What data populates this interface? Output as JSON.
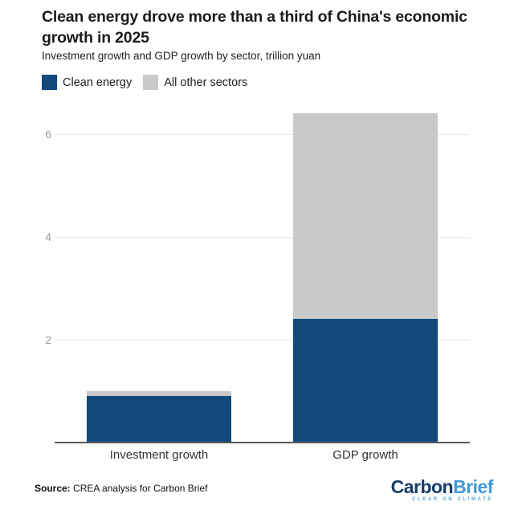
{
  "header": {
    "title_line1": "Clean energy drove more than a third of China's economic",
    "title_line2": "growth in 2025",
    "subtitle": "Investment growth and GDP growth by sector, trillion yuan"
  },
  "legend": [
    {
      "label": "Clean energy",
      "color": "#114a7b"
    },
    {
      "label": "All other sectors",
      "color": "#c9c9c9"
    }
  ],
  "chart_data": {
    "type": "bar",
    "stacked": true,
    "title": "Clean energy drove more than a third of China's economic growth in 2025",
    "subtitle": "Investment growth and GDP growth by sector, trillion yuan",
    "categories": [
      "Investment growth",
      "GDP growth"
    ],
    "series": [
      {
        "name": "Clean energy",
        "color": "#114a7b",
        "values": [
          0.9,
          2.4
        ]
      },
      {
        "name": "All other sectors",
        "color": "#c9c9c9",
        "values": [
          0.1,
          4.0
        ]
      }
    ],
    "xlabel": "",
    "ylabel": "",
    "yticks": [
      2,
      4,
      6
    ],
    "ylim": [
      0,
      6.5
    ],
    "grid": true,
    "legend_position": "top-left"
  },
  "footer": {
    "source_label": "Source:",
    "source_text": " CREA analysis for Carbon Brief",
    "logo": {
      "part1": "Carbon",
      "part2": "Brief",
      "tagline": "CLEAR ON CLIMATE"
    }
  },
  "colors": {
    "clean_energy": "#114a7b",
    "all_other_sectors": "#c9c9c9",
    "gridline": "#e8e8e8",
    "axis_line": "#58595b",
    "tick_label": "#9b9b9b",
    "logo_navy": "#173c66",
    "logo_blue": "#4199d6"
  }
}
